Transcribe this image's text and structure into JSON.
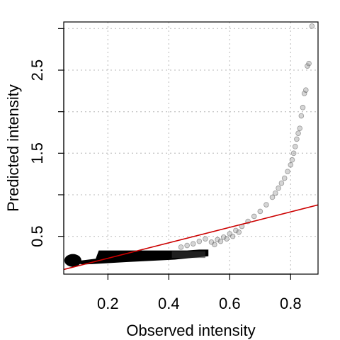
{
  "chart_data": {
    "type": "scatter",
    "title": "",
    "xlabel": "Observed intensity",
    "ylabel": "Predicted intensity",
    "xlim": [
      0.055,
      0.89
    ],
    "ylim": [
      0.045,
      3.08
    ],
    "x_ticks": [
      0.2,
      0.4,
      0.6,
      0.8
    ],
    "x_tick_labels": [
      "0.2",
      "0.4",
      "0.6",
      "0.8"
    ],
    "y_ticks": [
      0.5,
      1.0,
      1.5,
      2.0,
      2.5,
      3.0
    ],
    "y_tick_labels": [
      "0.5",
      "",
      "1.5",
      "",
      "2.5",
      ""
    ],
    "grid": true,
    "reference_line": {
      "intercept": 0.05,
      "slope": 0.93,
      "color": "#cc0000"
    },
    "point_color": "#888888",
    "dense_band": {
      "x_min": 0.07,
      "x_max": 0.53,
      "y_min": 0.16,
      "y_max": 0.33
    },
    "series": [
      {
        "values": [
          [
            0.54,
            0.43
          ],
          [
            0.56,
            0.46
          ],
          [
            0.58,
            0.49
          ],
          [
            0.6,
            0.53
          ],
          [
            0.62,
            0.57
          ],
          [
            0.64,
            0.62
          ],
          [
            0.66,
            0.68
          ],
          [
            0.68,
            0.74
          ],
          [
            0.7,
            0.8
          ],
          [
            0.72,
            0.88
          ],
          [
            0.74,
            0.97
          ],
          [
            0.75,
            1.02
          ],
          [
            0.76,
            1.08
          ],
          [
            0.77,
            1.14
          ],
          [
            0.78,
            1.2
          ],
          [
            0.79,
            1.28
          ],
          [
            0.8,
            1.36
          ],
          [
            0.805,
            1.42
          ],
          [
            0.81,
            1.5
          ],
          [
            0.815,
            1.58
          ],
          [
            0.82,
            1.67
          ],
          [
            0.825,
            1.74
          ],
          [
            0.83,
            1.8
          ],
          [
            0.835,
            1.95
          ],
          [
            0.84,
            2.05
          ],
          [
            0.845,
            2.22
          ],
          [
            0.85,
            2.26
          ],
          [
            0.855,
            2.55
          ],
          [
            0.86,
            2.58
          ],
          [
            0.87,
            3.03
          ],
          [
            0.44,
            0.37
          ],
          [
            0.46,
            0.39
          ],
          [
            0.48,
            0.41
          ],
          [
            0.5,
            0.44
          ],
          [
            0.52,
            0.47
          ],
          [
            0.55,
            0.4
          ],
          [
            0.57,
            0.44
          ],
          [
            0.59,
            0.47
          ],
          [
            0.61,
            0.5
          ],
          [
            0.63,
            0.55
          ]
        ]
      }
    ]
  }
}
